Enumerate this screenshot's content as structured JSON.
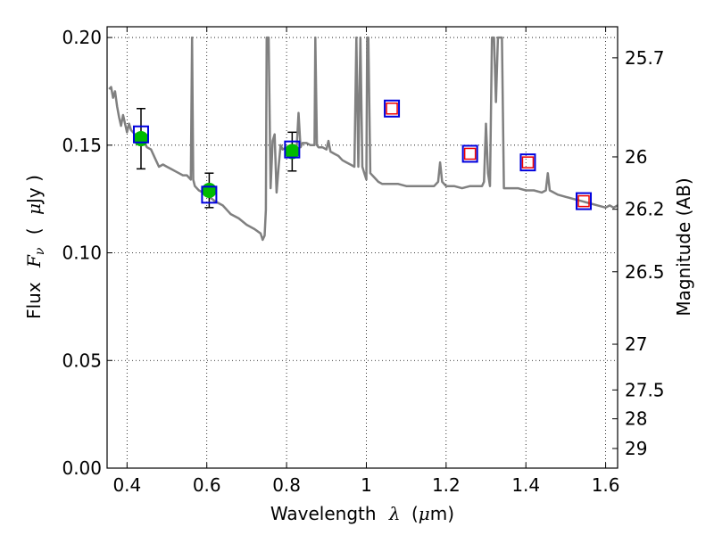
{
  "chart_data": {
    "type": "scatter",
    "xlabel": "Wavelength",
    "xlabel_symbol": "λ",
    "xlabel_unit_open": "(",
    "xlabel_unit_mu": "μ",
    "xlabel_unit_rest": "m)",
    "ylabel": "Flux",
    "ylabel_symbol_F": "F",
    "ylabel_symbol_sub": "ν",
    "ylabel_unit_open": "(",
    "ylabel_unit_mu": "μ",
    "ylabel_unit_rest": "Jy )",
    "y2label": "Magnitude (AB)",
    "xlim": [
      0.35,
      1.63
    ],
    "ylim": [
      0.0,
      0.205
    ],
    "grid": true,
    "x_ticks": [
      0.4,
      0.6,
      0.8,
      1.0,
      1.2,
      1.4,
      1.6
    ],
    "x_tick_labels": [
      "0.4",
      "0.6",
      "0.8",
      "1",
      "1.2",
      "1.4",
      "1.6"
    ],
    "y_ticks": [
      0.0,
      0.05,
      0.1,
      0.15,
      0.2
    ],
    "y_tick_labels": [
      "0.00",
      "0.05",
      "0.10",
      "0.15",
      "0.20"
    ],
    "mag_ticks": [
      25.7,
      26,
      26.2,
      26.5,
      27,
      27.5,
      28,
      29
    ],
    "mag_tick_labels": [
      "25.7",
      "26",
      "26.2",
      "26.5",
      "27",
      "27.5",
      "28",
      "29"
    ],
    "colors": {
      "model": "#808080",
      "observed": "#00bb00",
      "model_box": "#0000dd",
      "predicted": "#ee0000",
      "errorbar": "#000000"
    },
    "series": [
      {
        "kind": "model_spectrum",
        "points": [
          [
            0.355,
            0.176
          ],
          [
            0.36,
            0.177
          ],
          [
            0.365,
            0.172
          ],
          [
            0.37,
            0.175
          ],
          [
            0.375,
            0.168
          ],
          [
            0.38,
            0.163
          ],
          [
            0.385,
            0.159
          ],
          [
            0.39,
            0.164
          ],
          [
            0.395,
            0.16
          ],
          [
            0.4,
            0.156
          ],
          [
            0.405,
            0.16
          ],
          [
            0.41,
            0.157
          ],
          [
            0.42,
            0.155
          ],
          [
            0.43,
            0.153
          ],
          [
            0.44,
            0.152
          ],
          [
            0.45,
            0.149
          ],
          [
            0.46,
            0.148
          ],
          [
            0.47,
            0.144
          ],
          [
            0.48,
            0.14
          ],
          [
            0.49,
            0.141
          ],
          [
            0.5,
            0.14
          ],
          [
            0.51,
            0.139
          ],
          [
            0.52,
            0.138
          ],
          [
            0.53,
            0.137
          ],
          [
            0.54,
            0.136
          ],
          [
            0.55,
            0.136
          ],
          [
            0.555,
            0.135
          ],
          [
            0.56,
            0.134
          ],
          [
            0.563,
            0.2
          ],
          [
            0.566,
            0.134
          ],
          [
            0.57,
            0.131
          ],
          [
            0.58,
            0.129
          ],
          [
            0.6,
            0.127
          ],
          [
            0.62,
            0.124
          ],
          [
            0.64,
            0.122
          ],
          [
            0.66,
            0.118
          ],
          [
            0.68,
            0.116
          ],
          [
            0.7,
            0.113
          ],
          [
            0.72,
            0.111
          ],
          [
            0.735,
            0.109
          ],
          [
            0.74,
            0.106
          ],
          [
            0.745,
            0.108
          ],
          [
            0.748,
            0.12
          ],
          [
            0.75,
            0.2
          ],
          [
            0.755,
            0.2
          ],
          [
            0.76,
            0.13
          ],
          [
            0.765,
            0.152
          ],
          [
            0.77,
            0.155
          ],
          [
            0.775,
            0.128
          ],
          [
            0.78,
            0.14
          ],
          [
            0.785,
            0.15
          ],
          [
            0.79,
            0.148
          ],
          [
            0.8,
            0.149
          ],
          [
            0.81,
            0.15
          ],
          [
            0.82,
            0.15
          ],
          [
            0.825,
            0.148
          ],
          [
            0.83,
            0.165
          ],
          [
            0.835,
            0.149
          ],
          [
            0.84,
            0.151
          ],
          [
            0.85,
            0.151
          ],
          [
            0.86,
            0.15
          ],
          [
            0.87,
            0.15
          ],
          [
            0.872,
            0.2
          ],
          [
            0.876,
            0.15
          ],
          [
            0.88,
            0.149
          ],
          [
            0.89,
            0.149
          ],
          [
            0.9,
            0.148
          ],
          [
            0.905,
            0.152
          ],
          [
            0.91,
            0.147
          ],
          [
            0.92,
            0.146
          ],
          [
            0.93,
            0.145
          ],
          [
            0.94,
            0.143
          ],
          [
            0.95,
            0.142
          ],
          [
            0.96,
            0.141
          ],
          [
            0.97,
            0.14
          ],
          [
            0.975,
            0.2
          ],
          [
            0.98,
            0.14
          ],
          [
            0.985,
            0.2
          ],
          [
            0.99,
            0.14
          ],
          [
            0.995,
            0.137
          ],
          [
            1.0,
            0.134
          ],
          [
            1.002,
            0.2
          ],
          [
            1.005,
            0.2
          ],
          [
            1.01,
            0.137
          ],
          [
            1.02,
            0.135
          ],
          [
            1.03,
            0.133
          ],
          [
            1.04,
            0.132
          ],
          [
            1.06,
            0.132
          ],
          [
            1.08,
            0.132
          ],
          [
            1.1,
            0.131
          ],
          [
            1.12,
            0.131
          ],
          [
            1.14,
            0.131
          ],
          [
            1.16,
            0.131
          ],
          [
            1.17,
            0.131
          ],
          [
            1.18,
            0.133
          ],
          [
            1.185,
            0.142
          ],
          [
            1.19,
            0.133
          ],
          [
            1.2,
            0.131
          ],
          [
            1.22,
            0.131
          ],
          [
            1.24,
            0.13
          ],
          [
            1.26,
            0.131
          ],
          [
            1.28,
            0.131
          ],
          [
            1.29,
            0.131
          ],
          [
            1.295,
            0.133
          ],
          [
            1.3,
            0.16
          ],
          [
            1.305,
            0.137
          ],
          [
            1.31,
            0.131
          ],
          [
            1.315,
            0.2
          ],
          [
            1.32,
            0.2
          ],
          [
            1.325,
            0.17
          ],
          [
            1.33,
            0.2
          ],
          [
            1.34,
            0.2
          ],
          [
            1.345,
            0.13
          ],
          [
            1.36,
            0.13
          ],
          [
            1.38,
            0.13
          ],
          [
            1.4,
            0.129
          ],
          [
            1.42,
            0.129
          ],
          [
            1.44,
            0.128
          ],
          [
            1.45,
            0.129
          ],
          [
            1.455,
            0.137
          ],
          [
            1.46,
            0.129
          ],
          [
            1.48,
            0.127
          ],
          [
            1.5,
            0.126
          ],
          [
            1.52,
            0.125
          ],
          [
            1.54,
            0.124
          ],
          [
            1.56,
            0.123
          ],
          [
            1.58,
            0.122
          ],
          [
            1.6,
            0.121
          ],
          [
            1.61,
            0.122
          ],
          [
            1.62,
            0.121
          ],
          [
            1.63,
            0.122
          ]
        ]
      },
      {
        "kind": "observed",
        "points": [
          {
            "x": 0.435,
            "y": 0.153,
            "err": 0.014
          },
          {
            "x": 0.606,
            "y": 0.129,
            "err": 0.008
          },
          {
            "x": 0.814,
            "y": 0.147,
            "err": 0.009
          }
        ]
      },
      {
        "kind": "model_photometry",
        "points": [
          {
            "x": 0.435,
            "y": 0.155
          },
          {
            "x": 0.606,
            "y": 0.127
          },
          {
            "x": 0.814,
            "y": 0.148
          },
          {
            "x": 1.064,
            "y": 0.167
          },
          {
            "x": 1.26,
            "y": 0.146
          },
          {
            "x": 1.405,
            "y": 0.142
          },
          {
            "x": 1.545,
            "y": 0.124
          }
        ]
      },
      {
        "kind": "predicted",
        "points": [
          {
            "x": 1.064,
            "y": 0.167
          },
          {
            "x": 1.26,
            "y": 0.146
          },
          {
            "x": 1.405,
            "y": 0.142
          },
          {
            "x": 1.545,
            "y": 0.124
          }
        ]
      }
    ]
  }
}
